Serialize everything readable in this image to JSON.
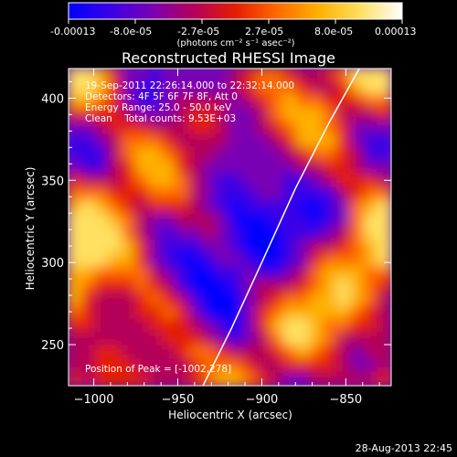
{
  "colorbar": {
    "tick_labels": [
      "-0.00013",
      "-8.0e-05",
      "-2.7e-05",
      "2.7e-05",
      "8.0e-05",
      "0.00013"
    ],
    "unit_label": "(photons cm⁻² s⁻¹ asec⁻²)",
    "stops": [
      "#0000ff",
      "#3b00e6",
      "#7a00b4",
      "#b4005a",
      "#e41e00",
      "#ff6a00",
      "#ffb000",
      "#ffe060",
      "#ffffff"
    ]
  },
  "chart_data": {
    "type": "heatmap",
    "title": "Reconstructed RHESSI Image",
    "xlabel": "Heliocentric X (arcsec)",
    "ylabel": "Heliocentric Y (arcsec)",
    "xlim": [
      -1015,
      -823
    ],
    "ylim": [
      225,
      418
    ],
    "x_ticks": [
      -1000,
      -950,
      -900,
      -850
    ],
    "y_ticks": [
      250,
      300,
      350,
      400
    ],
    "x_tick_labels": [
      "−1000",
      "−950",
      "−900",
      "−850"
    ],
    "y_tick_labels": [
      "250",
      "300",
      "350",
      "400"
    ],
    "color_range": [
      -0.00013,
      0.00013
    ],
    "annotations": [
      "19-Sep-2011 22:26:14.000 to 22:32:14.000",
      "Detectors: 4F 5F 6F 7F 8F, Att 0",
      "Energy Range: 25.0 - 50.0 keV",
      "Clean    Total counts: 9.53E+03"
    ],
    "peak_text": "Position of Peak = [-1002,278]",
    "limb_curve": {
      "x": [
        -935,
        -918,
        -900,
        -880,
        -860,
        -842
      ],
      "y": [
        225,
        260,
        300,
        345,
        385,
        418
      ]
    }
  },
  "footer": {
    "timestamp": "28-Aug-2013 22:45"
  }
}
